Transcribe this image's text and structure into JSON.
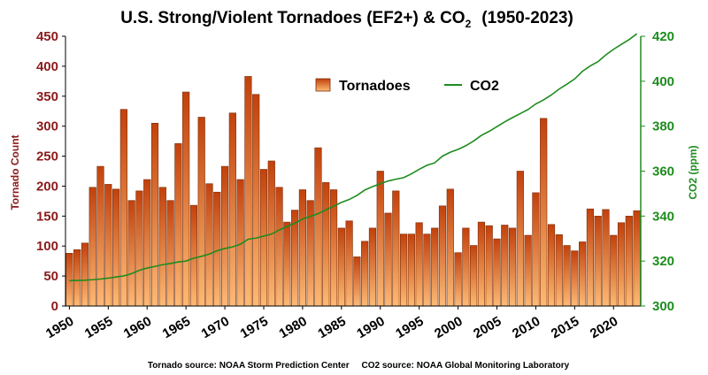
{
  "chart_data": {
    "type": "bar",
    "title": "U.S. Strong/Violent Tornadoes (EF2+) & CO",
    "title_subscript": "2",
    "title_suffix": "(1950-2023)",
    "ylabel_left": "Tornado Count",
    "ylabel_right": "CO2 (ppm)",
    "ylim_left": [
      0,
      450
    ],
    "ylim_right": [
      300,
      420
    ],
    "yticks_left": [
      "0",
      "50",
      "100",
      "150",
      "200",
      "250",
      "300",
      "350",
      "400",
      "450"
    ],
    "yticks_right": [
      "300",
      "320",
      "340",
      "360",
      "380",
      "400",
      "420"
    ],
    "xticks": [
      "1950",
      "1955",
      "1960",
      "1965",
      "1970",
      "1975",
      "1980",
      "1985",
      "1990",
      "1995",
      "2000",
      "2005",
      "2010",
      "2015",
      "2020"
    ],
    "legend": [
      "Tornadoes",
      "CO2"
    ],
    "legend_position": "top-center",
    "grid": false,
    "source_note": "Tornado source: NOAA Storm Prediction Center     CO2 source: NOAA Global Monitoring Laboratory",
    "colors": {
      "bar_top": "#c2410c",
      "bar_bottom": "#fdba74",
      "bar_edge": "#7a2e0a",
      "line": "#1e8c1e",
      "left_axis": "#8b1a1a",
      "right_axis": "#1e8c1e"
    },
    "x": [
      1950,
      1951,
      1952,
      1953,
      1954,
      1955,
      1956,
      1957,
      1958,
      1959,
      1960,
      1961,
      1962,
      1963,
      1964,
      1965,
      1966,
      1967,
      1968,
      1969,
      1970,
      1971,
      1972,
      1973,
      1974,
      1975,
      1976,
      1977,
      1978,
      1979,
      1980,
      1981,
      1982,
      1983,
      1984,
      1985,
      1986,
      1987,
      1988,
      1989,
      1990,
      1991,
      1992,
      1993,
      1994,
      1995,
      1996,
      1997,
      1998,
      1999,
      2000,
      2001,
      2002,
      2003,
      2004,
      2005,
      2006,
      2007,
      2008,
      2009,
      2010,
      2011,
      2012,
      2013,
      2014,
      2015,
      2016,
      2017,
      2018,
      2019,
      2020,
      2021,
      2022,
      2023
    ],
    "series": [
      {
        "name": "Tornadoes",
        "axis": "left",
        "values": [
          88,
          94,
          105,
          198,
          233,
          203,
          195,
          328,
          176,
          192,
          211,
          305,
          198,
          176,
          271,
          357,
          168,
          315,
          204,
          190,
          233,
          322,
          211,
          383,
          353,
          228,
          242,
          198,
          140,
          160,
          194,
          176,
          264,
          206,
          194,
          130,
          142,
          82,
          108,
          130,
          225,
          155,
          192,
          120,
          120,
          139,
          120,
          130,
          167,
          195,
          89,
          130,
          101,
          140,
          134,
          112,
          135,
          130,
          225,
          118,
          189,
          313,
          136,
          119,
          101,
          92,
          107,
          162,
          150,
          161,
          118,
          139,
          150,
          159
        ]
      },
      {
        "name": "CO2",
        "axis": "right",
        "values": [
          311.3,
          311.4,
          311.5,
          311.7,
          312.0,
          312.4,
          312.9,
          313.4,
          314.4,
          315.9,
          316.9,
          317.6,
          318.4,
          318.9,
          319.6,
          320.0,
          321.3,
          322.1,
          323.1,
          324.6,
          325.6,
          326.3,
          327.5,
          329.7,
          330.2,
          331.1,
          332.0,
          333.8,
          335.4,
          336.8,
          338.7,
          339.9,
          341.1,
          342.8,
          344.4,
          346.1,
          347.4,
          349.2,
          351.6,
          353.1,
          354.4,
          355.6,
          356.4,
          357.1,
          358.8,
          360.8,
          362.6,
          363.7,
          366.7,
          368.4,
          369.7,
          371.3,
          373.4,
          375.9,
          377.7,
          379.8,
          381.9,
          383.8,
          385.6,
          387.4,
          389.9,
          391.7,
          393.9,
          396.5,
          398.7,
          401.0,
          404.4,
          406.8,
          408.7,
          411.7,
          414.2,
          416.4,
          418.5,
          421.1
        ]
      }
    ]
  }
}
